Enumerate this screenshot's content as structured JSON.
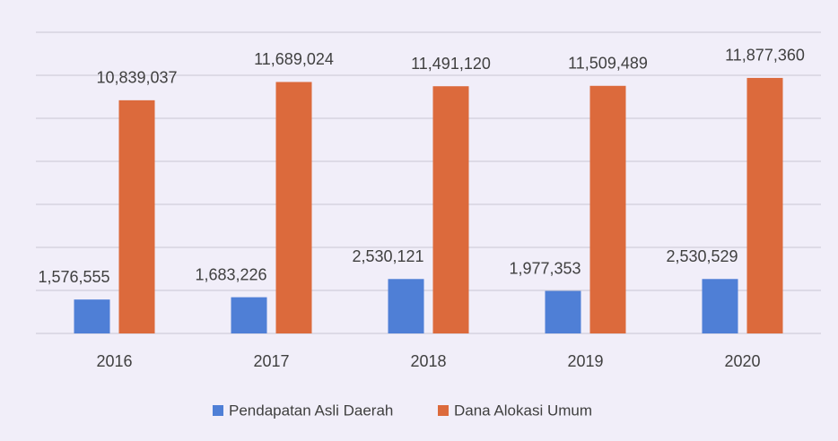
{
  "chart_data": {
    "type": "bar",
    "categories": [
      "2016",
      "2017",
      "2018",
      "2019",
      "2020"
    ],
    "series": [
      {
        "name": "Pendapatan Asli Daerah",
        "color": "#4f7fd6",
        "values": [
          1576555,
          1683226,
          2530121,
          1977353,
          2530529
        ],
        "value_labels": [
          "1,576,555",
          "1,683,226",
          "2,530,121",
          "1,977,353",
          "2,530,529"
        ]
      },
      {
        "name": "Dana Alokasi Umum",
        "color": "#dc6a3c",
        "values": [
          10839037,
          11689024,
          11491120,
          11509489,
          11877360
        ],
        "value_labels": [
          "10,839,037",
          "11,689,024",
          "11,491,120",
          "11,509,489",
          "11,877,360"
        ]
      }
    ],
    "ylim": [
      0,
      14000000
    ],
    "yticks": [
      0,
      2000000,
      4000000,
      6000000,
      8000000,
      10000000,
      12000000,
      14000000
    ],
    "grid": true,
    "legend": "bottom"
  }
}
